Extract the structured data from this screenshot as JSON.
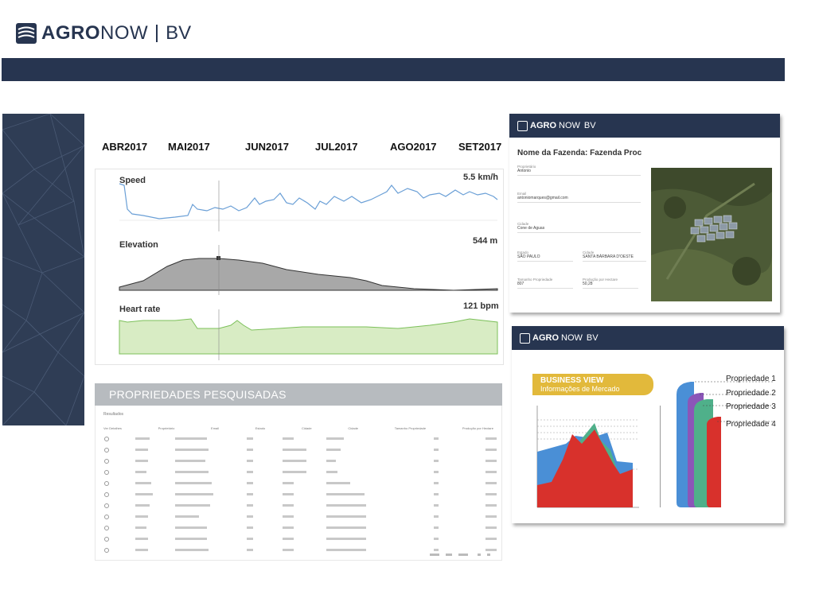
{
  "brand": {
    "name_bold": "AGRO",
    "name_light": "NOW",
    "suffix": "BV"
  },
  "timeline": {
    "months": [
      "ABR2017",
      "MAI2017",
      "JUN2017",
      "JUL2017",
      "AGO2017",
      "SET2017"
    ]
  },
  "activity_charts": {
    "speed": {
      "title": "Speed",
      "value": "5.5 km/h"
    },
    "elevation": {
      "title": "Elevation",
      "value": "544 m"
    },
    "heart_rate": {
      "title": "Heart rate",
      "value": "121 bpm"
    }
  },
  "properties": {
    "header": "PROPRIEDADES PESQUISADAS",
    "results_label": "Resultados",
    "columns": [
      "Ver Detalhes",
      "Proprietário",
      "Email",
      "Estado",
      "Cidade",
      "Cidade",
      "Tamanho Propriedade",
      "Produção por Hectare"
    ]
  },
  "farm_card": {
    "title": "Nome da Fazenda: Fazenda Proc",
    "fields": {
      "owner": {
        "label": "Proprietário",
        "value": "Antonio"
      },
      "email": {
        "label": "Email",
        "value": "antoniomarques@gmail.com"
      },
      "city": {
        "label": "Cidade",
        "value": "Cone de Aguas"
      },
      "state": {
        "label": "Estado",
        "value": "SÃO PAULO"
      },
      "city2": {
        "label": "Cidade",
        "value": "SANTA BÁRBARA D'OESTE"
      },
      "size": {
        "label": "Tamanho Propriedade",
        "value": "807"
      },
      "production": {
        "label": "Produção por Hectare",
        "value": "50,28"
      }
    }
  },
  "business_card": {
    "badge_title": "BUSINESS VIEW",
    "badge_subtitle": "Informações de Mercado",
    "legend": [
      "Propriedade 1",
      "Propriedade 2",
      "Propriedade 3",
      "Propriedade 4"
    ],
    "colors": {
      "p1": "#4a8fd6",
      "p2": "#8b56b8",
      "p3": "#4fb08a",
      "p4": "#d8312c"
    }
  }
}
